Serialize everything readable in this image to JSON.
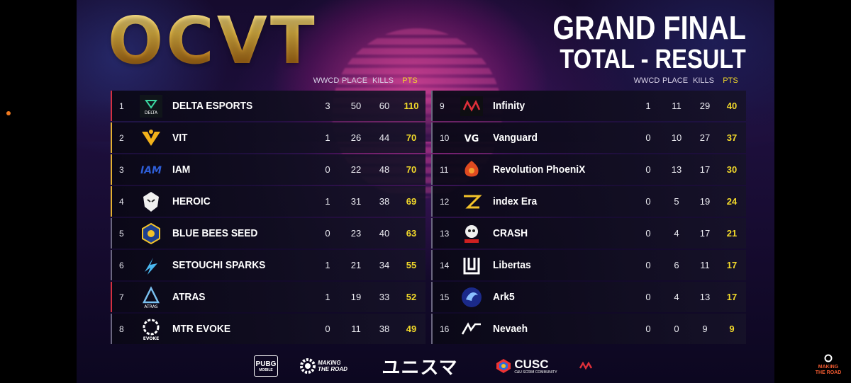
{
  "header": {
    "logo": "OCVT",
    "title_line1": "GRAND FINAL",
    "title_line2": "TOTAL - RESULT"
  },
  "columns": {
    "wwcd": "WWCD",
    "place": "PLACE",
    "kills": "KILLS",
    "pts": "PTS"
  },
  "left_table": [
    {
      "rank": "1",
      "team": "DELTA ESPORTS",
      "emblem": "delta-logo-icon",
      "wwcd": "3",
      "place": "50",
      "kills": "60",
      "pts": "110",
      "accent": "red"
    },
    {
      "rank": "2",
      "team": "VIT",
      "emblem": "vit-logo-icon",
      "wwcd": "1",
      "place": "26",
      "kills": "44",
      "pts": "70",
      "accent": "gold"
    },
    {
      "rank": "3",
      "team": "IAM",
      "emblem": "iam-logo-icon",
      "wwcd": "0",
      "place": "22",
      "kills": "48",
      "pts": "70",
      "accent": "gold"
    },
    {
      "rank": "4",
      "team": "HEROIC",
      "emblem": "heroic-logo-icon",
      "wwcd": "1",
      "place": "31",
      "kills": "38",
      "pts": "69",
      "accent": "gold"
    },
    {
      "rank": "5",
      "team": "BLUE BEES SEED",
      "emblem": "blue-bees-logo-icon",
      "wwcd": "0",
      "place": "23",
      "kills": "40",
      "pts": "63",
      "accent": "grey"
    },
    {
      "rank": "6",
      "team": "SETOUCHI SPARKS",
      "emblem": "setouchi-logo-icon",
      "wwcd": "1",
      "place": "21",
      "kills": "34",
      "pts": "55",
      "accent": "grey"
    },
    {
      "rank": "7",
      "team": "ATRAS",
      "emblem": "atras-logo-icon",
      "wwcd": "1",
      "place": "19",
      "kills": "33",
      "pts": "52",
      "accent": "red"
    },
    {
      "rank": "8",
      "team": "MTR EVOKE",
      "emblem": "evoke-logo-icon",
      "wwcd": "0",
      "place": "11",
      "kills": "38",
      "pts": "49",
      "accent": "grey"
    }
  ],
  "right_table": [
    {
      "rank": "9",
      "team": "Infinity",
      "emblem": "infinity-logo-icon",
      "wwcd": "1",
      "place": "11",
      "kills": "29",
      "pts": "40",
      "accent": "grey"
    },
    {
      "rank": "10",
      "team": "Vanguard",
      "emblem": "vanguard-logo-icon",
      "wwcd": "0",
      "place": "10",
      "kills": "27",
      "pts": "37",
      "accent": "grey"
    },
    {
      "rank": "11",
      "team": "Revolution PhoeniX",
      "emblem": "phoenix-logo-icon",
      "wwcd": "0",
      "place": "13",
      "kills": "17",
      "pts": "30",
      "accent": "grey"
    },
    {
      "rank": "12",
      "team": "index Era",
      "emblem": "index-era-logo-icon",
      "wwcd": "0",
      "place": "5",
      "kills": "19",
      "pts": "24",
      "accent": "grey"
    },
    {
      "rank": "13",
      "team": "CRASH",
      "emblem": "crash-logo-icon",
      "wwcd": "0",
      "place": "4",
      "kills": "17",
      "pts": "21",
      "accent": "grey"
    },
    {
      "rank": "14",
      "team": "Libertas",
      "emblem": "libertas-logo-icon",
      "wwcd": "0",
      "place": "6",
      "kills": "11",
      "pts": "17",
      "accent": "grey"
    },
    {
      "rank": "15",
      "team": "Ark5",
      "emblem": "ark5-logo-icon",
      "wwcd": "0",
      "place": "4",
      "kills": "13",
      "pts": "17",
      "accent": "grey"
    },
    {
      "rank": "16",
      "team": "Nevaeh",
      "emblem": "nevaeh-logo-icon",
      "wwcd": "0",
      "place": "0",
      "kills": "9",
      "pts": "9",
      "accent": "grey"
    }
  ],
  "sponsors": {
    "pubg": "PUBG",
    "pubg_sub": "MOBILE",
    "mtr_line1": "MAKING",
    "mtr_line2": "THE ROAD",
    "unisuma": "ユニスマ",
    "cusc": "CUSC",
    "cusc_sub": "C&U SCRIM COMMUNITY"
  },
  "corner_logo": {
    "line1": "MAKING",
    "line2": "THE ROAD"
  },
  "colors": {
    "points": "#f2d92a",
    "gold_accent": "#e4b030",
    "red_accent": "#d43040",
    "logo_gold": "#f4c54a"
  }
}
